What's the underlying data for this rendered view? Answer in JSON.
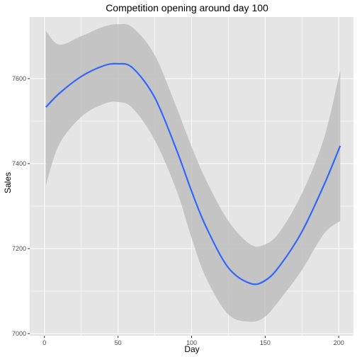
{
  "chart_data": {
    "type": "line",
    "title": "Competition opening around day 100",
    "xlabel": "Day",
    "ylabel": "Sales",
    "xlim": [
      -10,
      210
    ],
    "ylim": [
      6995,
      7745
    ],
    "x_ticks": [
      0,
      50,
      100,
      150,
      200
    ],
    "x_tick_labels": [
      "0",
      "50",
      "100",
      "150",
      "200"
    ],
    "y_ticks": [
      7000,
      7200,
      7400,
      7600
    ],
    "y_tick_labels": [
      "7000",
      "7200",
      "7400",
      "7600"
    ],
    "grid": true,
    "colors": {
      "panel_background": "#e5e5e5",
      "grid_major": "#ffffff",
      "smooth_line": "#3366ff",
      "confidence_band": "#bebebe"
    },
    "series": [
      {
        "x": [
          1,
          10,
          25,
          40,
          50,
          60,
          75,
          90,
          100,
          110,
          125,
          140,
          150,
          160,
          175,
          190,
          201
        ],
        "y": [
          7533,
          7565,
          7605,
          7630,
          7635,
          7625,
          7555,
          7430,
          7335,
          7250,
          7155,
          7118,
          7125,
          7160,
          7240,
          7350,
          7442
        ],
        "lower": [
          7350,
          7445,
          7510,
          7540,
          7545,
          7530,
          7455,
          7335,
          7225,
          7130,
          7045,
          7028,
          7040,
          7080,
          7150,
          7235,
          7265
        ],
        "upper": [
          7712,
          7680,
          7700,
          7722,
          7728,
          7720,
          7655,
          7530,
          7440,
          7360,
          7265,
          7210,
          7210,
          7240,
          7330,
          7460,
          7620
        ]
      }
    ]
  }
}
